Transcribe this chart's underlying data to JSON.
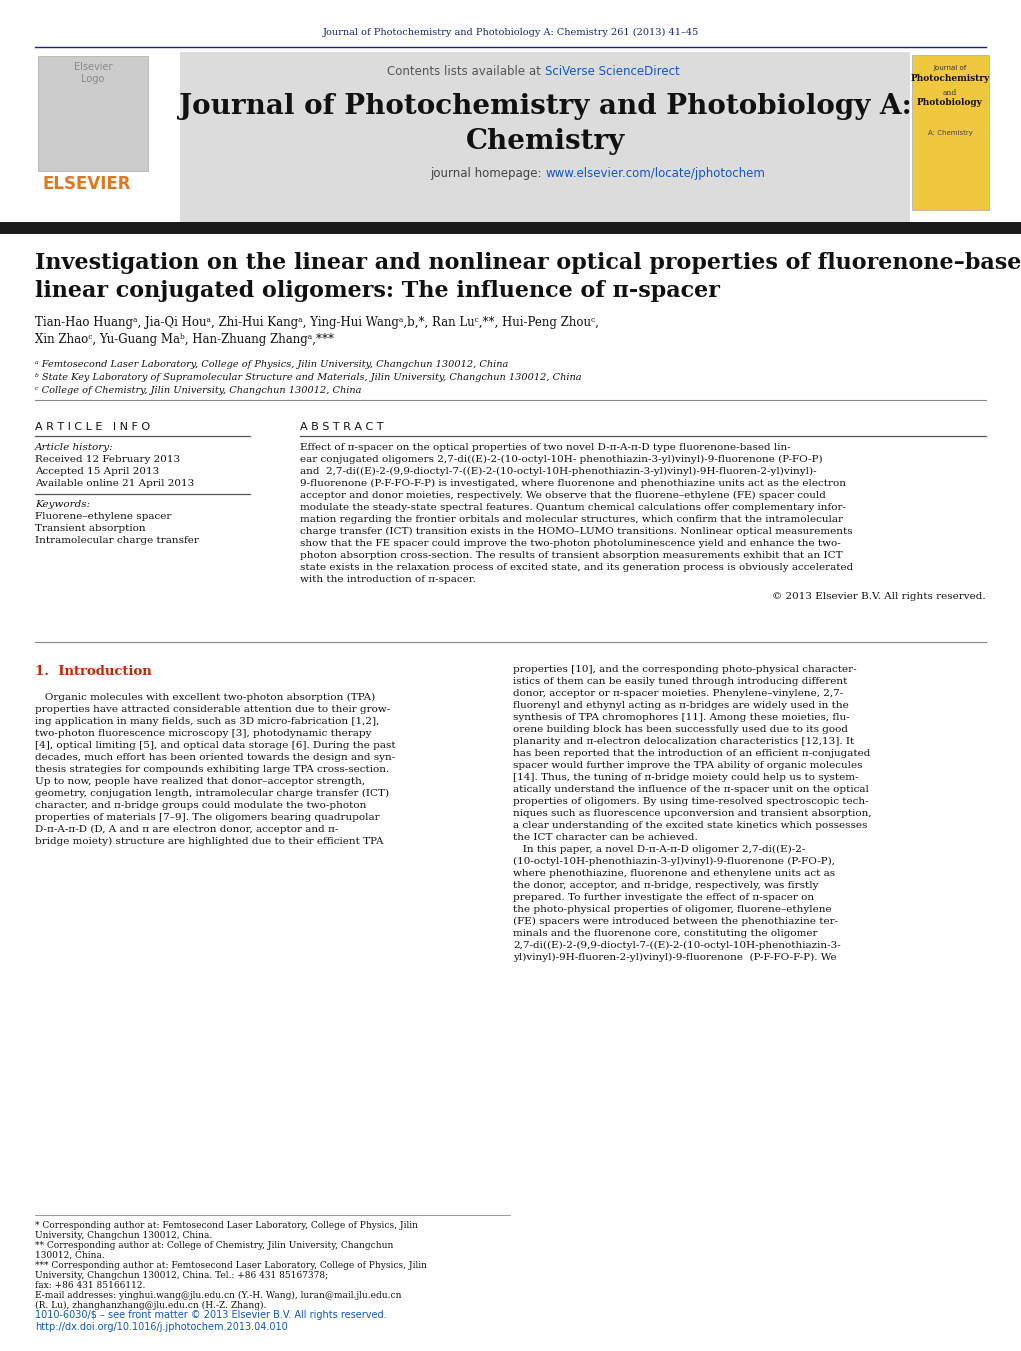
{
  "page_bg": "#ffffff",
  "top_journal_text": "Journal of Photochemistry and Photobiology A: Chemistry 261 (2013) 41–45",
  "top_journal_color": "#1a237e",
  "header_bg": "#e0e0e0",
  "sciverse_color": "#1155cc",
  "journal_title_line1": "Journal of Photochemistry and Photobiology A:",
  "journal_title_line2": "Chemistry",
  "journal_title_color": "#111111",
  "journal_homepage_text": "journal homepage: ",
  "journal_homepage_url": "www.elsevier.com/locate/jphotochem",
  "journal_homepage_url_color": "#1155cc",
  "elsevier_color": "#e07820",
  "dark_bar_color": "#222222",
  "article_title_line1": "Investigation on the linear and nonlinear optical properties of fluorenone–based",
  "article_title_line2": "linear conjugated oligomers: The influence of π-spacer",
  "article_title_color": "#111111",
  "authors_line1": "Tian-Hao Huangᵃ, Jia-Qi Houᵃ, Zhi-Hui Kangᵃ, Ying-Hui Wangᵃ,b,*, Ran Luᶜ,**, Hui-Peng Zhouᶜ,",
  "authors_line2": "Xin Zhaoᶜ, Yu-Guang Maᵇ, Han-Zhuang Zhangᵃ,***",
  "authors_color": "#111111",
  "affil_a": "ᵃ Femtosecond Laser Laboratory, College of Physics, Jilin University, Changchun 130012, China",
  "affil_b": "ᵇ State Key Laboratory of Supramolecular Structure and Materials, Jilin University, Changchun 130012, China",
  "affil_c": "ᶜ College of Chemistry, Jilin University, Changchun 130012, China",
  "article_info_title": "A R T I C L E   I N F O",
  "abstract_title": "A B S T R A C T",
  "article_history_label": "Article history:",
  "received": "Received 12 February 2013",
  "accepted": "Accepted 15 April 2013",
  "available": "Available online 21 April 2013",
  "keywords_label": "Keywords:",
  "keyword1": "Fluorene–ethylene spacer",
  "keyword2": "Transient absorption",
  "keyword3": "Intramolecular charge transfer",
  "abstract_text_lines": [
    "Effect of π-spacer on the optical properties of two novel D-π-A-π-D type fluorenone-based lin-",
    "ear conjugated oligomers 2,7-di((E)-2-(10-octyl-10H- phenothiazin-3-yl)vinyl)-9-fluorenone (P-FO-P)",
    "and  2,7-di((E)-2-(9,9-dioctyl-7-((E)-2-(10-octyl-10H-phenothiazin-3-yl)vinyl)-9H-fluoren-2-yl)vinyl)-",
    "9-fluorenone (P-F-FO-F-P) is investigated, where fluorenone and phenothiazine units act as the electron",
    "acceptor and donor moieties, respectively. We observe that the fluorene–ethylene (FE) spacer could",
    "modulate the steady-state spectral features. Quantum chemical calculations offer complementary infor-",
    "mation regarding the frontier orbitals and molecular structures, which confirm that the intramolecular",
    "charge transfer (ICT) transition exists in the HOMO–LUMO transitions. Nonlinear optical measurements",
    "show that the FE spacer could improve the two-photon photoluminescence yield and enhance the two-",
    "photon absorption cross-section. The results of transient absorption measurements exhibit that an ICT",
    "state exists in the relaxation process of excited state, and its generation process is obviously accelerated",
    "with the introduction of π-spacer."
  ],
  "copyright_text": "© 2013 Elsevier B.V. All rights reserved.",
  "intro_title": "1.  Introduction",
  "intro_col1_lines": [
    "   Organic molecules with excellent two-photon absorption (TPA)",
    "properties have attracted considerable attention due to their grow-",
    "ing application in many fields, such as 3D micro-fabrication [1,2],",
    "two-photon fluorescence microscopy [3], photodynamic therapy",
    "[4], optical limiting [5], and optical data storage [6]. During the past",
    "decades, much effort has been oriented towards the design and syn-",
    "thesis strategies for compounds exhibiting large TPA cross-section.",
    "Up to now, people have realized that donor–acceptor strength,",
    "geometry, conjugation length, intramolecular charge transfer (ICT)",
    "character, and π-bridge groups could modulate the two-photon",
    "properties of materials [7–9]. The oligomers bearing quadrupolar",
    "D-π-A-π-D (D, A and π are electron donor, acceptor and π-",
    "bridge moiety) structure are highlighted due to their efficient TPA"
  ],
  "intro_col2_lines": [
    "properties [10], and the corresponding photo-physical character-",
    "istics of them can be easily tuned through introducing different",
    "donor, acceptor or π-spacer moieties. Phenylene–vinylene, 2,7-",
    "fluorenyl and ethynyl acting as π-bridges are widely used in the",
    "synthesis of TPA chromophores [11]. Among these moieties, flu-",
    "orene building block has been successfully used due to its good",
    "planarity and π-electron delocalization characteristics [12,13]. It",
    "has been reported that the introduction of an efficient π-conjugated",
    "spacer would further improve the TPA ability of organic molecules",
    "[14]. Thus, the tuning of π-bridge moiety could help us to system-",
    "atically understand the influence of the π-spacer unit on the optical",
    "properties of oligomers. By using time-resolved spectroscopic tech-",
    "niques such as fluorescence upconversion and transient absorption,",
    "a clear understanding of the excited state kinetics which possesses",
    "the ICT character can be achieved.",
    "   In this paper, a novel D-π-A-π-D oligomer 2,7-di((E)-2-",
    "(10-octyl-10H-phenothiazin-3-yl)vinyl)-9-fluorenone (P-FO-P),",
    "where phenothiazine, fluorenone and ethenylene units act as",
    "the donor, acceptor, and π-bridge, respectively, was firstly",
    "prepared. To further investigate the effect of π-spacer on",
    "the photo-physical properties of oligomer, fluorene–ethylene",
    "(FE) spacers were introduced between the phenothiazine ter-",
    "minals and the fluorenone core, constituting the oligomer",
    "2,7-di((E)-2-(9,9-dioctyl-7-((E)-2-(10-octyl-10H-phenothiazin-3-",
    "yl)vinyl)-9H-fluoren-2-yl)vinyl)-9-fluorenone  (P-F-FO-F-P). We"
  ],
  "footnote_lines": [
    "* Corresponding author at: Femtosecond Laser Laboratory, College of Physics, Jilin",
    "University, Changchun 130012, China.",
    "** Corresponding author at: College of Chemistry, Jilin University, Changchun",
    "130012, China.",
    "*** Corresponding author at: Femtosecond Laser Laboratory, College of Physics, Jilin",
    "University, Changchun 130012, China. Tel.: +86 431 85167378;",
    "fax: +86 431 85166112.",
    "E-mail addresses: yinghui.wang@jlu.edu.cn (Y.-H. Wang), luran@mail.jlu.edu.cn",
    "(R. Lu), zhanghanzhang@jlu.edu.cn (H.-Z. Zhang)."
  ],
  "bottom_line1": "1010-6030/$ – see front matter © 2013 Elsevier B.V. All rights reserved.",
  "bottom_line2": "http://dx.doi.org/10.1016/j.jphotochem.2013.04.010",
  "cover_title_lines": [
    "Journal of",
    "Photochemistry",
    "and",
    "Photobiology"
  ],
  "cover_subtitle": "A: Chemistry"
}
